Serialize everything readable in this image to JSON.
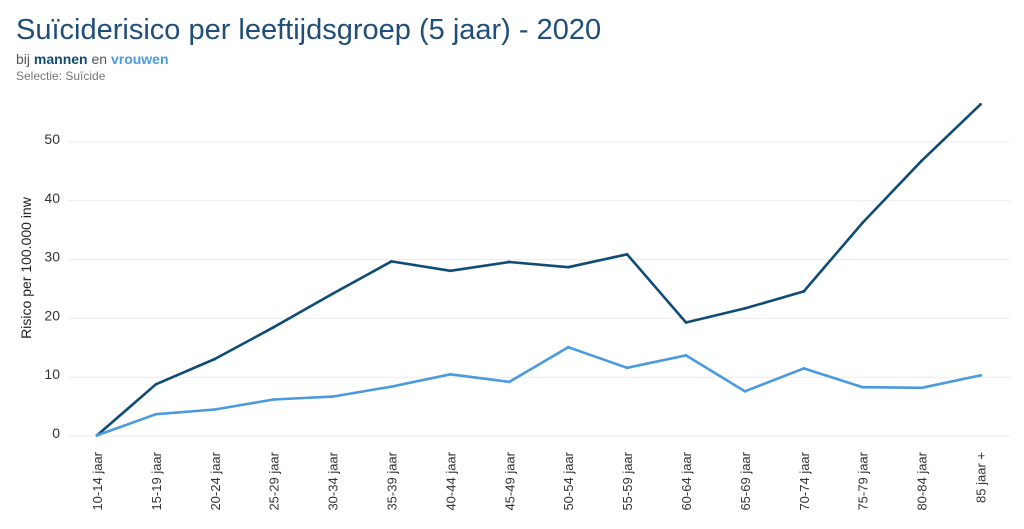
{
  "header": {
    "title": "Suïciderisico per leeftijdsgroep (5 jaar) - 2020",
    "subtitle_prefix": "bij",
    "subtitle_men": "mannen",
    "subtitle_joiner": "en",
    "subtitle_women": "vrouwen",
    "selection": "Selectie: Suïcide"
  },
  "chart_data": {
    "type": "line",
    "title": "Suïciderisico per leeftijdsgroep (5 jaar) - 2020",
    "xlabel": "",
    "ylabel": "Risico per 100.000 inw",
    "ylim": [
      0,
      58
    ],
    "yticks": [
      0,
      10,
      20,
      30,
      40,
      50
    ],
    "grid": true,
    "categories": [
      "10-14 jaar",
      "15-19 jaar",
      "20-24 jaar",
      "25-29 jaar",
      "30-34 jaar",
      "35-39 jaar",
      "40-44 jaar",
      "45-49 jaar",
      "50-54 jaar",
      "55-59 jaar",
      "60-64 jaar",
      "65-69 jaar",
      "70-74 jaar",
      "75-79 jaar",
      "80-84 jaar",
      "85 jaar +"
    ],
    "series": [
      {
        "name": "mannen",
        "color": "#0f4c75",
        "values": [
          0.1,
          8.8,
          13.1,
          18.5,
          24.2,
          29.7,
          28.1,
          29.6,
          28.7,
          30.9,
          19.3,
          21.7,
          24.6,
          36.3,
          46.8,
          56.4
        ]
      },
      {
        "name": "vrouwen",
        "color": "#4a9ade",
        "values": [
          0.1,
          3.7,
          4.5,
          6.2,
          6.7,
          8.4,
          10.5,
          9.2,
          15.1,
          11.6,
          13.7,
          7.6,
          11.5,
          8.3,
          8.2,
          10.3
        ]
      }
    ]
  }
}
